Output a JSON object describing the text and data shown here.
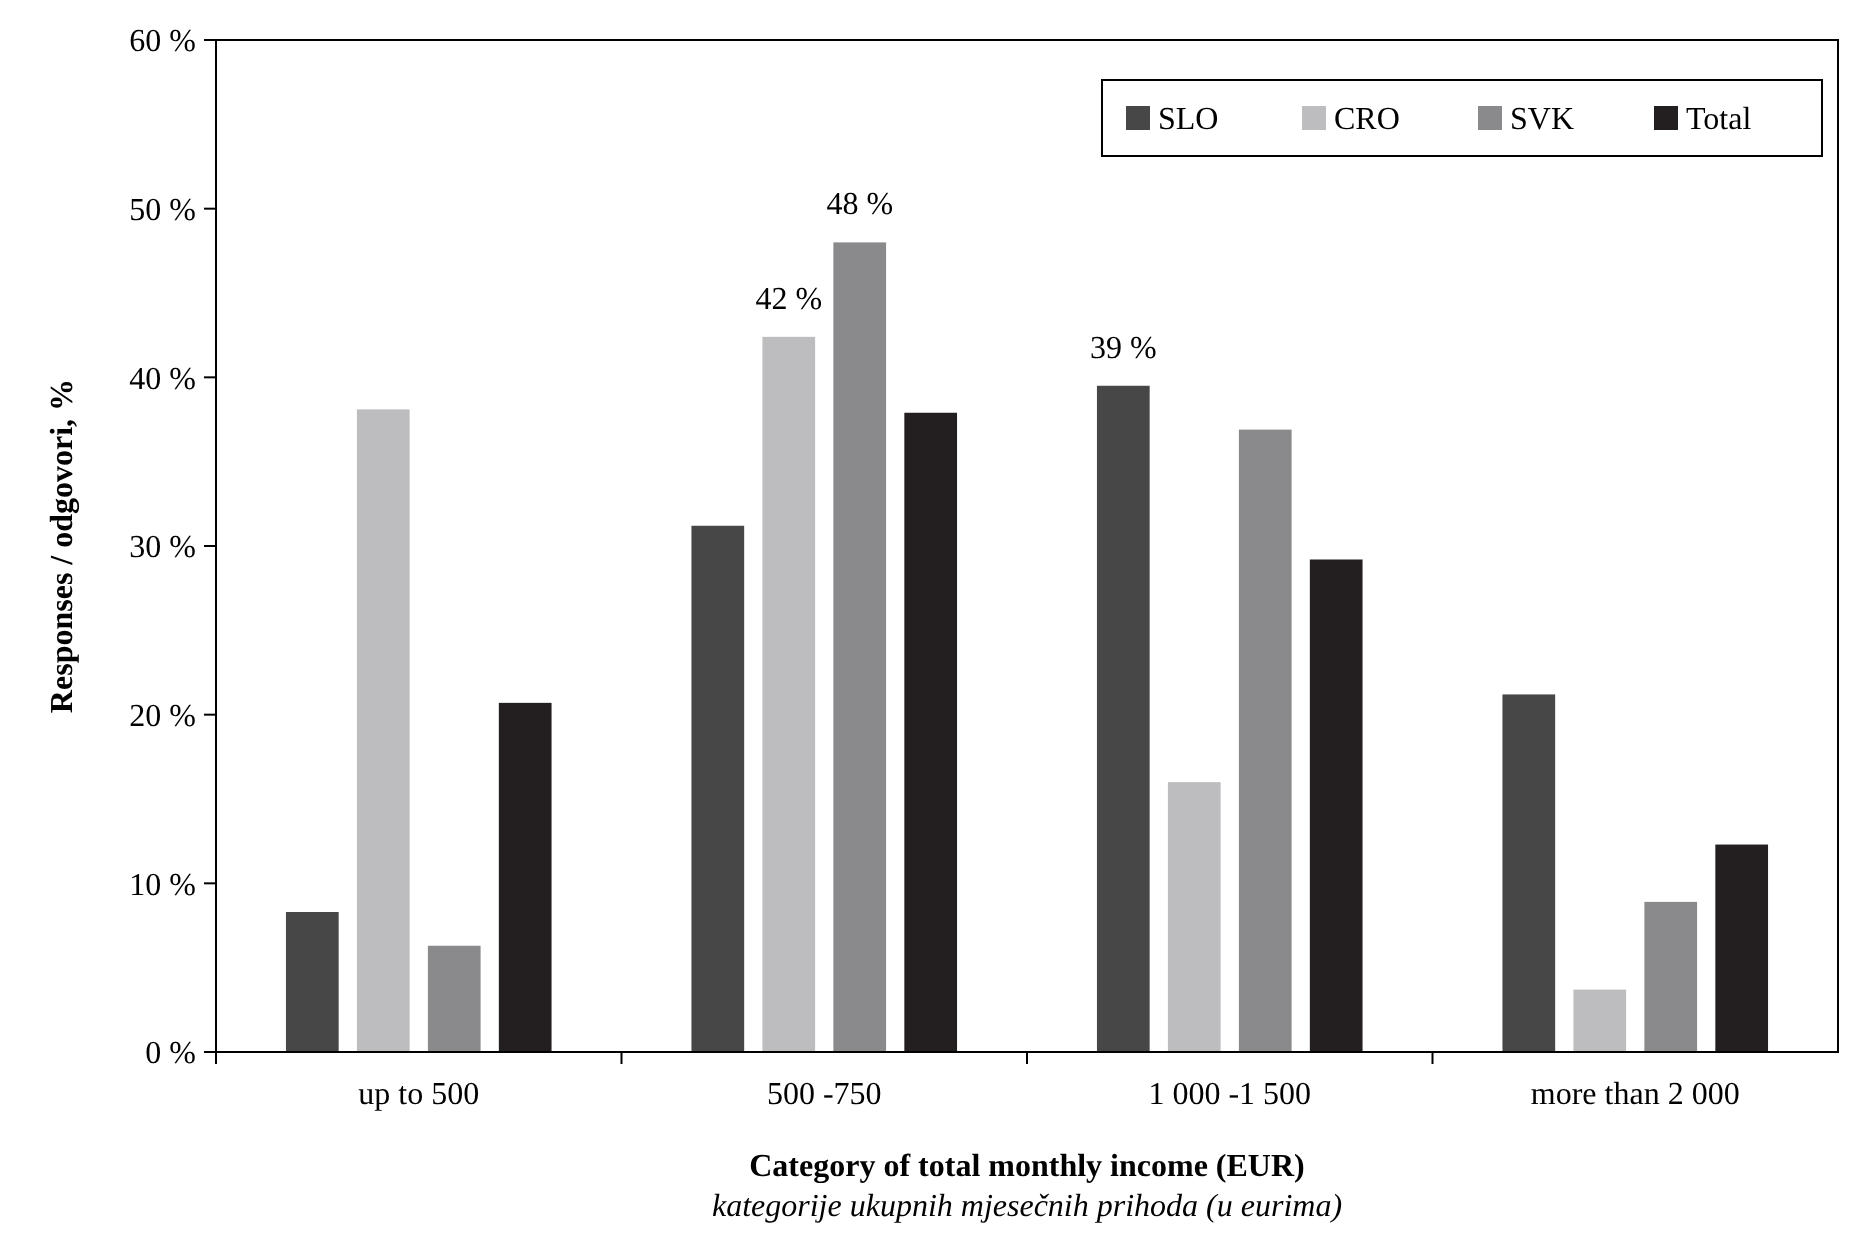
{
  "chart_data": {
    "type": "bar",
    "categories": [
      "up to 500",
      "500 -750",
      "1 000 -1 500",
      "more than  2 000"
    ],
    "series": [
      {
        "name": "SLO",
        "color": "#474747",
        "values": [
          8.3,
          31.2,
          39.5,
          21.2
        ],
        "value_labels": [
          null,
          null,
          "39 %",
          null
        ]
      },
      {
        "name": "CRO",
        "color": "#bdbdbf",
        "values": [
          38.1,
          42.4,
          16.0,
          3.7
        ],
        "value_labels": [
          null,
          "42 %",
          null,
          null
        ]
      },
      {
        "name": "SVK",
        "color": "#8a8a8c",
        "values": [
          6.3,
          48.0,
          36.9,
          8.9
        ],
        "value_labels": [
          null,
          "48 %",
          null,
          null
        ]
      },
      {
        "name": "Total",
        "color": "#231f20",
        "values": [
          20.7,
          37.9,
          29.2,
          12.3
        ],
        "value_labels": [
          null,
          null,
          null,
          null
        ]
      }
    ],
    "ylim": [
      0,
      60
    ],
    "yticks": [
      {
        "value": 0,
        "label": "0 %"
      },
      {
        "value": 10,
        "label": "10 %"
      },
      {
        "value": 20,
        "label": "20 %"
      },
      {
        "value": 30,
        "label": "30 %"
      },
      {
        "value": 40,
        "label": "40 %"
      },
      {
        "value": 50,
        "label": "50 %"
      },
      {
        "value": 60,
        "label": "60 %"
      }
    ],
    "ylabel": "Responses / odgovori, %",
    "xlabel": "Category of total monthly income (EUR)",
    "annotations": [
      "kategorije ukupnih mjesečnih prihoda (u eurima)"
    ],
    "legend": "top right",
    "grid": false
  }
}
